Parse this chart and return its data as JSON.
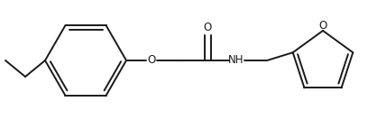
{
  "bg_color": "#ffffff",
  "line_color": "#1a1a1a",
  "line_width": 1.4,
  "font_size": 8.5,
  "figsize": [
    4.18,
    1.33
  ],
  "dpi": 100,
  "xlim": [
    0,
    418
  ],
  "ylim": [
    0,
    133
  ]
}
